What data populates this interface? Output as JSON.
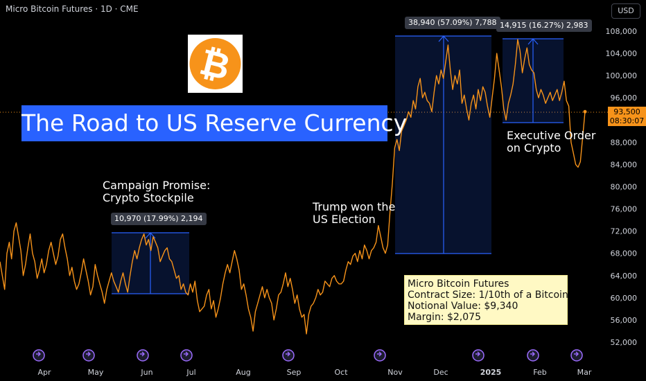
{
  "header": {
    "title": "Micro Bitcoin Futures · 1D · CME",
    "currency": "USD"
  },
  "banner": {
    "text": "The Road to US Reserve Currency"
  },
  "annotations": {
    "campaign": [
      "Campaign Promise:",
      "Crypto Stockpile"
    ],
    "election": [
      "Trump won the",
      "US Election"
    ],
    "executive": [
      "Executive Order",
      "on Crypto"
    ]
  },
  "info_box": {
    "lines": [
      "Micro Bitcoin Futures",
      "Contract Size: 1/10th of a Bitcoin",
      "Notional Value: $9,340",
      "Margin: $2,075"
    ]
  },
  "measure_labels": {
    "m1": "10,970 (17.99%) 2,194",
    "m2": "38,940 (57.09%) 7,788",
    "m3": "14,915 (16.27%) 2,983"
  },
  "price_tag": {
    "price": "93,500",
    "countdown": "08:30:07"
  },
  "colors": {
    "line": "#f7931a",
    "measure": "#2962ff",
    "banner": "#2962ff",
    "event_icon": "#9c6cff"
  },
  "chart_data": {
    "type": "line",
    "title": "Micro Bitcoin Futures · 1D · CME",
    "x_tick_labels": [
      "Apr",
      "May",
      "Jun",
      "Jul",
      "Aug",
      "Sep",
      "Oct",
      "Nov",
      "Dec",
      "2025",
      "Feb",
      "Mar"
    ],
    "y_tick_labels": [
      "108,000",
      "104,000",
      "100,000",
      "96,000",
      "92,000",
      "88,000",
      "84,000",
      "80,000",
      "76,000",
      "72,000",
      "68,000",
      "64,000",
      "60,000",
      "56,000",
      "52,000"
    ],
    "y_ticks": [
      108000,
      104000,
      100000,
      96000,
      92000,
      88000,
      84000,
      80000,
      76000,
      72000,
      68000,
      64000,
      60000,
      56000,
      52000
    ],
    "ylim": [
      50000,
      111000
    ],
    "series": [
      {
        "values": [
          66500,
          64000,
          61500,
          68000,
          70000,
          67000,
          72000,
          73500,
          71000,
          68500,
          64000,
          66000,
          69000,
          71500,
          68000,
          66500,
          63500,
          65000,
          67000,
          64500,
          66000,
          68500,
          70000,
          68000,
          66000,
          67500,
          70500,
          71500,
          69000,
          67000,
          64000,
          65500,
          63000,
          61500,
          62500,
          64500,
          67000,
          65000,
          63000,
          60500,
          62000,
          66000,
          64000,
          62500,
          61000,
          59000,
          61500,
          63000,
          64500,
          63000,
          62000,
          61000,
          63000,
          64500,
          62500,
          61000,
          64000,
          66500,
          68500,
          67000,
          69000,
          70500,
          71500,
          69500,
          70500,
          68500,
          71000,
          70000,
          69000,
          66500,
          67500,
          68500,
          69000,
          67000,
          66500,
          65000,
          63500,
          64000,
          61500,
          62500,
          61000,
          60500,
          62500,
          61000,
          63000,
          59500,
          57500,
          58000,
          58500,
          60500,
          61500,
          58000,
          59500,
          56500,
          58000,
          60000,
          62500,
          64500,
          66000,
          64500,
          66500,
          68500,
          67000,
          65000,
          61500,
          62500,
          60500,
          58000,
          56500,
          54000,
          57500,
          59000,
          60500,
          62000,
          60000,
          61500,
          60000,
          59000,
          56000,
          58000,
          60500,
          61000,
          62500,
          64500,
          62000,
          63500,
          61500,
          59000,
          60500,
          58000,
          56500,
          57000,
          53500,
          57000,
          58500,
          59000,
          60000,
          61500,
          60500,
          61000,
          63000,
          62500,
          62000,
          63500,
          64000,
          63000,
          62500,
          62500,
          63000,
          65000,
          66500,
          66000,
          67500,
          68000,
          66500,
          68500,
          67000,
          69500,
          68500,
          67000,
          68500,
          69000,
          70000,
          73000,
          71000,
          69000,
          68000,
          69500,
          75500,
          80500,
          87000,
          88500,
          86500,
          90000,
          91000,
          92000,
          93500,
          92500,
          95500,
          94000,
          98000,
          99500,
          96000,
          97000,
          95500,
          95000,
          93500,
          97000,
          100000,
          98500,
          101000,
          99500,
          102500,
          105500,
          101000,
          97500,
          100000,
          98500,
          101000,
          95000,
          96500,
          94000,
          92000,
          95000,
          96500,
          94000,
          97500,
          95500,
          98000,
          97000,
          94500,
          92500,
          96000,
          99500,
          104000,
          101000,
          98000,
          94000,
          92000,
          95000,
          96500,
          98500,
          102000,
          106500,
          104500,
          100500,
          103000,
          105000,
          102000,
          101000,
          100500,
          97500,
          96000,
          97500,
          96500,
          95000,
          96000,
          97000,
          95500,
          96500,
          97500,
          95500,
          97000,
          99000,
          95500,
          94500,
          88000,
          86000,
          84000,
          83500,
          84500,
          89000,
          93500
        ]
      }
    ]
  }
}
